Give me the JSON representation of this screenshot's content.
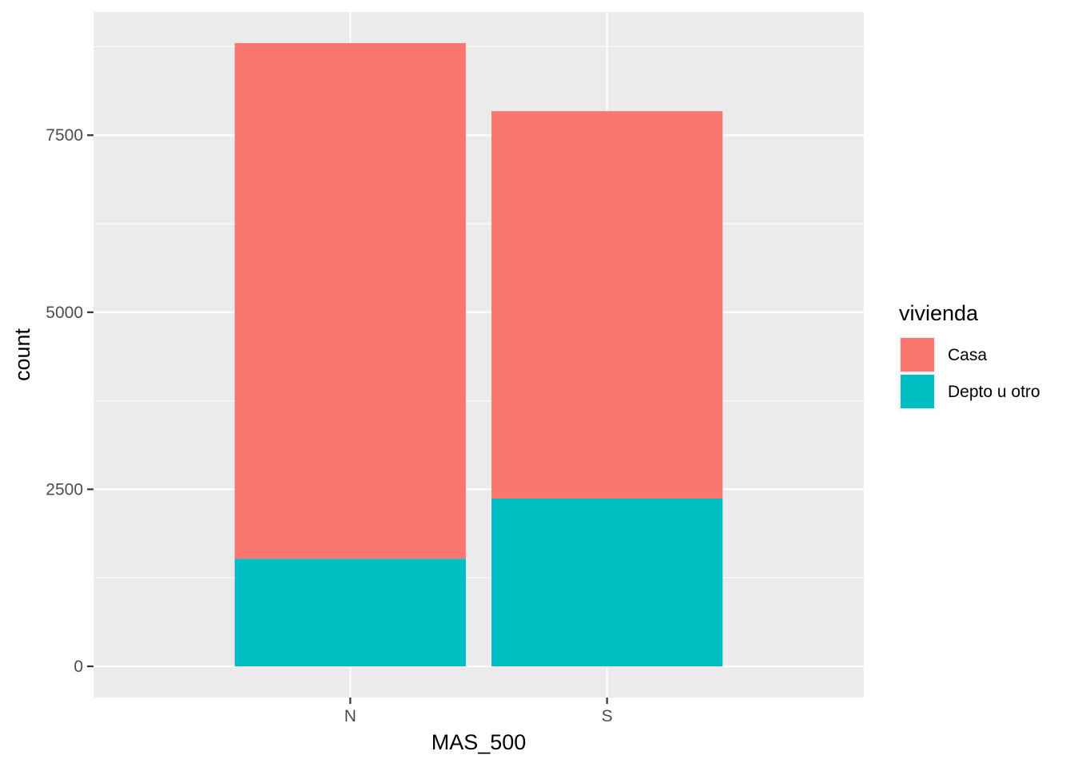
{
  "chart_data": {
    "type": "bar",
    "stacked": true,
    "categories": [
      "N",
      "S"
    ],
    "series": [
      {
        "name": "Casa",
        "values": [
          7280,
          5470
        ],
        "color": "#F8766D"
      },
      {
        "name": "Depto u otro",
        "values": [
          1520,
          2370
        ],
        "color": "#00BFC4"
      }
    ],
    "xlabel": "MAS_500",
    "ylabel": "count",
    "ylim": [
      -440,
      9240
    ],
    "yticks": [
      0,
      2500,
      5000,
      7500
    ],
    "ytick_labels": [
      "0",
      "2500",
      "5000",
      "7500"
    ],
    "grid": true,
    "legend": {
      "title": "vivienda",
      "position": "right"
    },
    "panel_background": "#EBEBEB",
    "grid_color": "#FFFFFF"
  }
}
